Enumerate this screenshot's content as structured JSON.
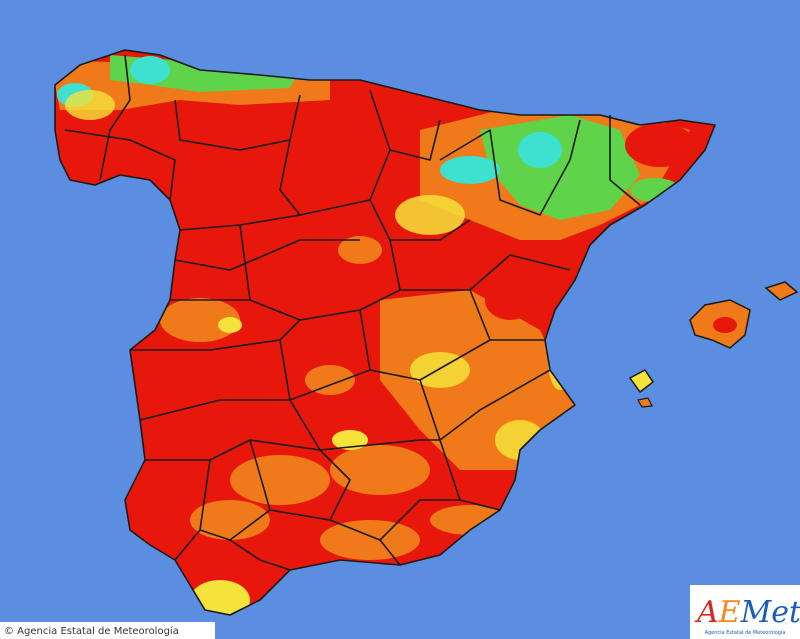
{
  "footer": {
    "copyright": "© Agencia Estatal de Meteorología"
  },
  "logo": {
    "parts": [
      "A",
      "E",
      "Met"
    ],
    "subtitle": "Agencia Estatal de Meteorología"
  }
}
